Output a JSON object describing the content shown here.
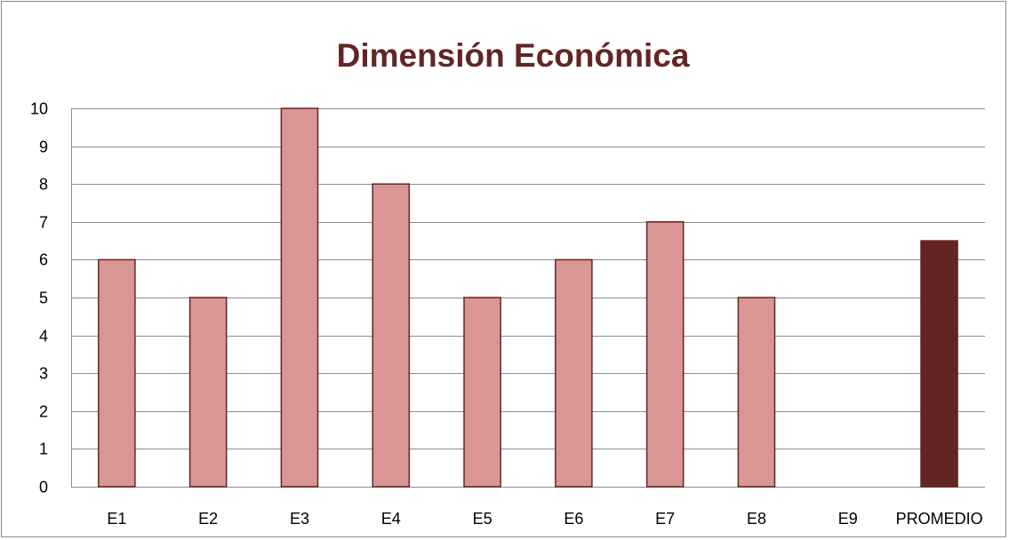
{
  "chart_data": {
    "type": "bar",
    "title": "Dimensión Económica",
    "categories": [
      "E1",
      "E2",
      "E3",
      "E4",
      "E5",
      "E6",
      "E7",
      "E8",
      "E9",
      "PROMEDIO"
    ],
    "values": [
      6,
      5,
      10,
      8,
      5,
      6,
      7,
      5,
      0,
      6.5
    ],
    "highlight_category": "PROMEDIO",
    "ylim": [
      0,
      10
    ],
    "yticks": [
      "0",
      "1",
      "2",
      "3",
      "4",
      "5",
      "6",
      "7",
      "8",
      "9",
      "10"
    ],
    "grid": true,
    "legend": "none",
    "colors": {
      "bar_fill": "#d99694",
      "bar_border": "#632523",
      "highlight_fill": "#632523",
      "title": "#632523",
      "gridline": "#8c8c8c"
    }
  }
}
